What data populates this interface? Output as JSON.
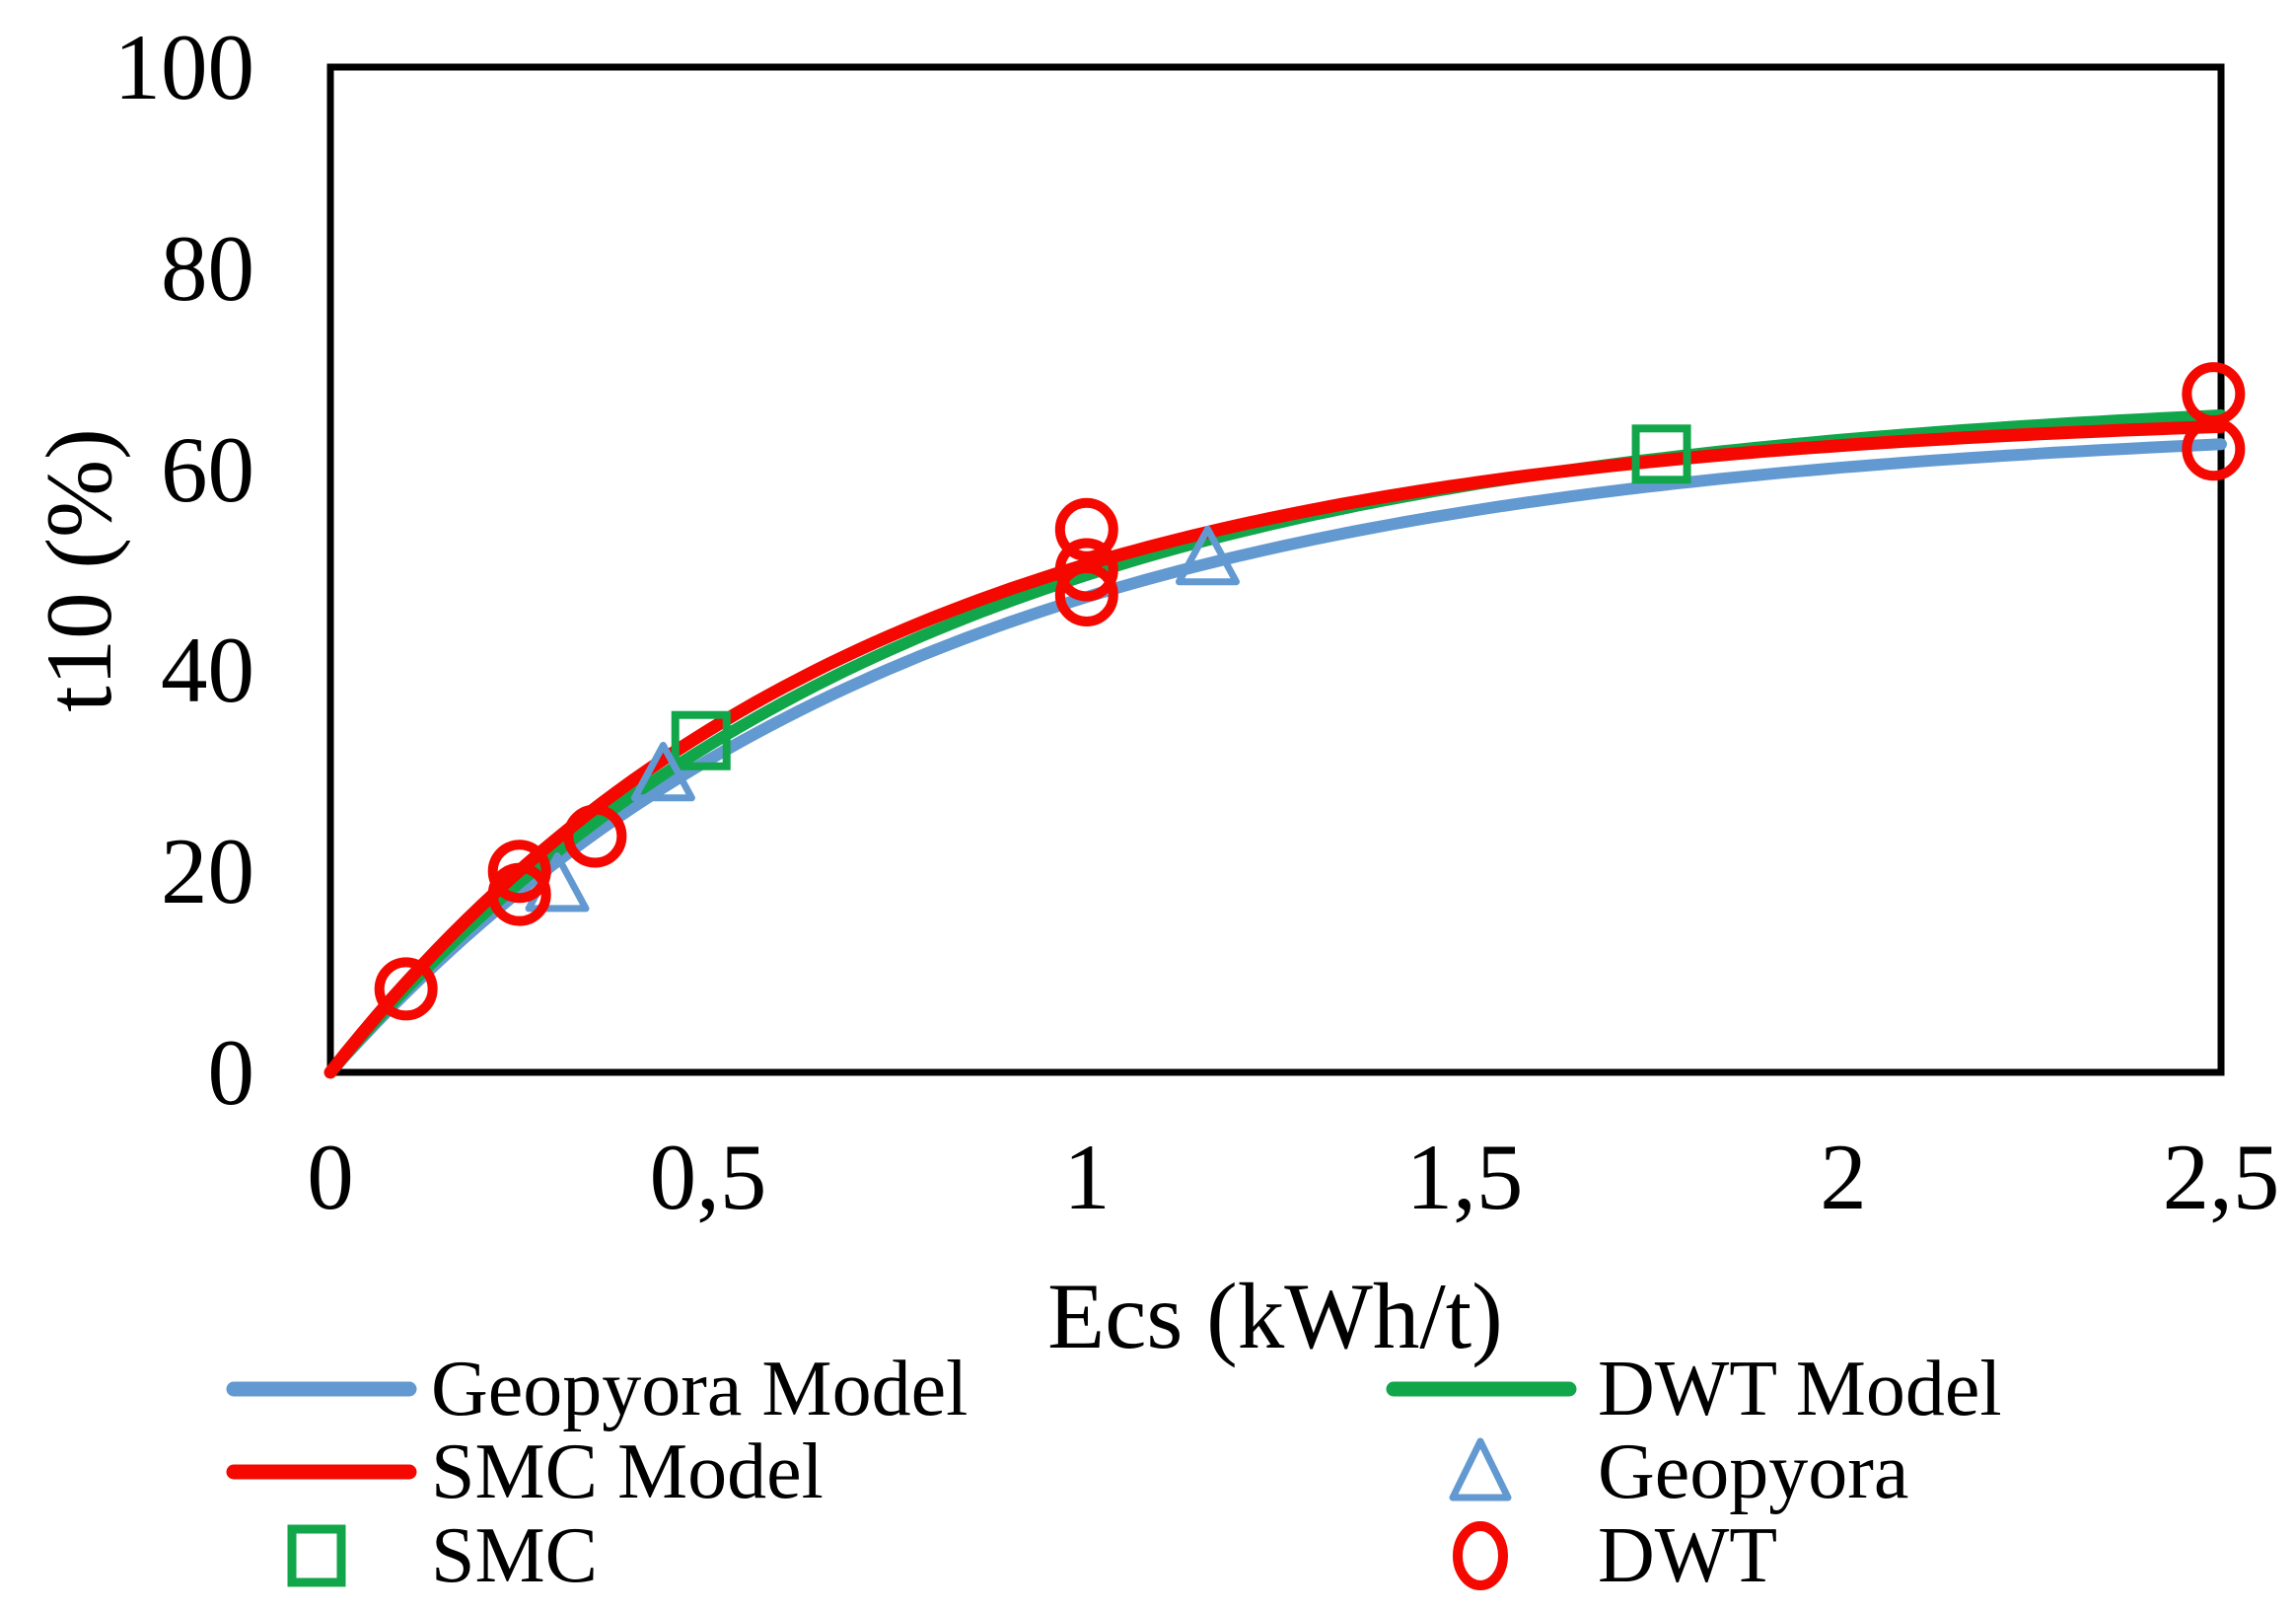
{
  "chart_data": {
    "type": "line",
    "title": "",
    "xlabel": "Ecs (kWh/t)",
    "ylabel": "t10 (%)",
    "xlim": [
      0,
      2.5
    ],
    "ylim": [
      0,
      100
    ],
    "grid": false,
    "decimal_style": "comma",
    "x_ticks": [
      "0",
      "0,5",
      "1",
      "1,5",
      "2",
      "2,5"
    ],
    "x_tick_values": [
      0,
      0.5,
      1,
      1.5,
      2,
      2.5
    ],
    "y_ticks": [
      "0",
      "20",
      "40",
      "60",
      "80",
      "100"
    ],
    "y_tick_values": [
      0,
      20,
      40,
      60,
      80,
      100
    ],
    "legend_position": "bottom-two-columns",
    "series": [
      {
        "name": "Geopyora Model",
        "kind": "line",
        "color": "#6399D1",
        "stroke_width": 12,
        "model": {
          "form": "y = A*(1-exp(-b*x))",
          "A": 65,
          "b": 1.3
        },
        "sampled_points": [
          [
            0,
            0
          ],
          [
            0.5,
            31.1
          ],
          [
            1,
            47.3
          ],
          [
            1.5,
            55.8
          ],
          [
            2,
            60.2
          ],
          [
            2.5,
            62.5
          ]
        ]
      },
      {
        "name": "DWT Model",
        "kind": "line",
        "color": "#12A64A",
        "stroke_width": 12,
        "model": {
          "form": "y = A*(1-exp(-b*x))",
          "A": 68,
          "b": 1.3
        },
        "sampled_points": [
          [
            0,
            0
          ],
          [
            0.5,
            32.5
          ],
          [
            1,
            49.5
          ],
          [
            1.5,
            58.4
          ],
          [
            2,
            63.0
          ],
          [
            2.5,
            65.4
          ]
        ]
      },
      {
        "name": "SMC Model",
        "kind": "line",
        "color": "#F50800",
        "stroke_width": 13,
        "model": {
          "form": "y = A*(1-exp(-b*x))",
          "A": 66,
          "b": 1.45
        },
        "sampled_points": [
          [
            0,
            0
          ],
          [
            0.5,
            34.0
          ],
          [
            1,
            50.5
          ],
          [
            1.5,
            58.5
          ],
          [
            2,
            62.4
          ],
          [
            2.5,
            64.3
          ]
        ]
      },
      {
        "name": "SMC",
        "kind": "scatter",
        "marker": "square",
        "color": "#12A64A",
        "marker_size": 52,
        "marker_stroke": 8,
        "points": [
          [
            0.49,
            33
          ],
          [
            1.76,
            61.5
          ]
        ]
      },
      {
        "name": "Geopyora",
        "kind": "scatter",
        "marker": "triangle",
        "color": "#6399D1",
        "marker_size": 58,
        "marker_stroke": 7,
        "points": [
          [
            0.3,
            18.5
          ],
          [
            0.44,
            29.5
          ],
          [
            1.16,
            51
          ]
        ]
      },
      {
        "name": "DWT",
        "kind": "scatter",
        "marker": "circle",
        "color": "#F50800",
        "marker_size": 54,
        "marker_stroke": 10,
        "points": [
          [
            0.1,
            8.3
          ],
          [
            0.25,
            20
          ],
          [
            0.25,
            17.7
          ],
          [
            0.35,
            23.5
          ],
          [
            1.0,
            54
          ],
          [
            1.0,
            50
          ],
          [
            1.0,
            47.5
          ],
          [
            2.49,
            67.5
          ],
          [
            2.49,
            62
          ]
        ]
      }
    ],
    "legend": {
      "columns": [
        {
          "items": [
            {
              "label": "Geopyora Model",
              "marker": "line",
              "series_index": 0
            },
            {
              "label": "SMC Model",
              "marker": "line",
              "series_index": 2
            },
            {
              "label": "SMC",
              "marker": "square",
              "series_index": 3
            }
          ]
        },
        {
          "items": [
            {
              "label": "DWT Model",
              "marker": "line",
              "series_index": 1
            },
            {
              "label": "Geopyora",
              "marker": "triangle",
              "series_index": 4
            },
            {
              "label": "DWT",
              "marker": "circle",
              "series_index": 5
            }
          ]
        }
      ]
    }
  }
}
